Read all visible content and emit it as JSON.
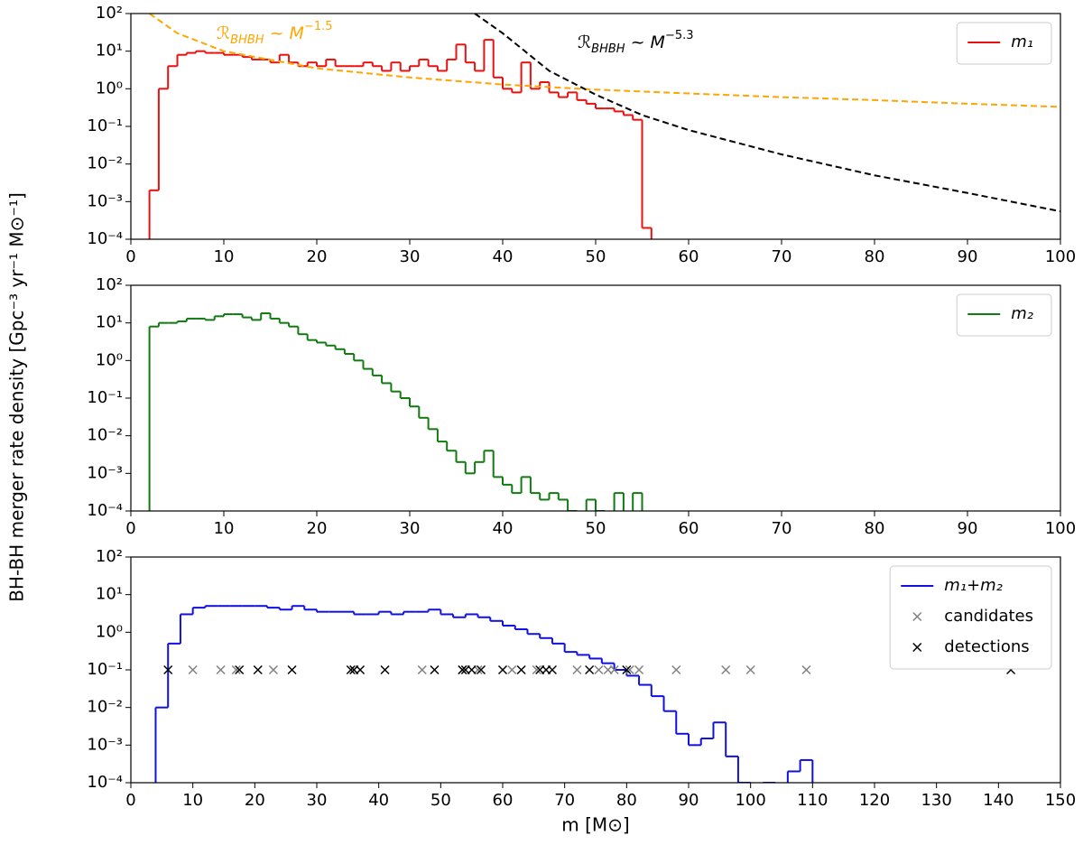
{
  "ylabel": "BH-BH merger rate density [Gpc⁻³ yr⁻¹ M⊙⁻¹]",
  "chart_data": [
    {
      "type": "histogram",
      "log_y": true,
      "legend": "upper right",
      "xlim": [
        0,
        100
      ],
      "ylim": [
        0.0001,
        100
      ],
      "xticks": [
        0,
        10,
        20,
        30,
        40,
        50,
        60,
        70,
        80,
        90,
        100
      ],
      "yticks": [
        {
          "value": 0.0001,
          "label": "10⁻⁴"
        },
        {
          "value": 0.001,
          "label": "10⁻³"
        },
        {
          "value": 0.01,
          "label": "10⁻²"
        },
        {
          "value": 0.1,
          "label": "10⁻¹"
        },
        {
          "value": 1,
          "label": "10⁰"
        },
        {
          "value": 10,
          "label": "10¹"
        },
        {
          "value": 100,
          "label": "10²"
        }
      ],
      "series": [
        {
          "type": "histogram",
          "name": "m₁",
          "color": "#e8110f",
          "bins": [
            2,
            3,
            4,
            5,
            6,
            7,
            8,
            9,
            10,
            11,
            12,
            13,
            14,
            15,
            16,
            17,
            18,
            19,
            20,
            21,
            22,
            23,
            24,
            25,
            26,
            27,
            28,
            29,
            30,
            31,
            32,
            33,
            34,
            35,
            36,
            37,
            38,
            39,
            40,
            41,
            42,
            43,
            44,
            45,
            46,
            47,
            48,
            49,
            50,
            51,
            52,
            53,
            54,
            55,
            56
          ],
          "values": [
            0.002,
            1,
            4,
            8,
            9,
            10,
            9,
            9,
            8,
            8,
            7,
            6,
            6,
            5,
            8,
            5,
            4,
            5,
            4,
            6,
            4,
            4,
            4,
            5,
            4,
            3,
            5,
            3,
            4,
            6,
            4,
            3,
            6,
            15,
            5,
            3,
            20,
            2,
            1,
            0.8,
            5,
            1,
            1.5,
            0.8,
            0.6,
            0.8,
            0.5,
            0.4,
            0.3,
            0.3,
            0.25,
            0.2,
            0.15,
            0.0002
          ]
        },
        {
          "type": "line",
          "color": "orange",
          "dashed": true,
          "x": [
            2,
            5,
            10,
            20,
            30,
            40,
            50,
            60,
            70,
            80,
            90,
            100
          ],
          "values": [
            100,
            30,
            10,
            3.5,
            2,
            1.3,
            0.95,
            0.75,
            0.6,
            0.5,
            0.4,
            0.33
          ],
          "annotation": {
            "main": "ℛ",
            "sub": "BHBH",
            "mid": " ~ M",
            "sup": "−1.5"
          }
        },
        {
          "type": "line",
          "color": "black",
          "dashed": true,
          "x": [
            37,
            40,
            45,
            50,
            55,
            60,
            70,
            80,
            90,
            100
          ],
          "values": [
            100,
            30,
            3,
            0.7,
            0.2,
            0.08,
            0.018,
            0.005,
            0.0017,
            0.00055
          ],
          "annotation": {
            "main": "ℛ",
            "sub": "BHBH",
            "mid": " ~ M",
            "sup": "−5.3"
          }
        }
      ]
    },
    {
      "type": "histogram",
      "log_y": true,
      "legend": "upper right",
      "xlim": [
        0,
        100
      ],
      "ylim": [
        0.0001,
        100
      ],
      "xticks": [
        0,
        10,
        20,
        30,
        40,
        50,
        60,
        70,
        80,
        90,
        100
      ],
      "yticks": [
        {
          "value": 0.0001,
          "label": "10⁻⁴"
        },
        {
          "value": 0.001,
          "label": "10⁻³"
        },
        {
          "value": 0.01,
          "label": "10⁻²"
        },
        {
          "value": 0.1,
          "label": "10⁻¹"
        },
        {
          "value": 1,
          "label": "10⁰"
        },
        {
          "value": 10,
          "label": "10¹"
        },
        {
          "value": 100,
          "label": "10²"
        }
      ],
      "series": [
        {
          "type": "histogram",
          "name": "m₂",
          "color": "#117a11",
          "bins": [
            2,
            3,
            4,
            5,
            6,
            7,
            8,
            9,
            10,
            11,
            12,
            13,
            14,
            15,
            16,
            17,
            18,
            19,
            20,
            21,
            22,
            23,
            24,
            25,
            26,
            27,
            28,
            29,
            30,
            31,
            32,
            33,
            34,
            35,
            36,
            37,
            38,
            39,
            40,
            41,
            42,
            43,
            44,
            45,
            46,
            47,
            48,
            49,
            50,
            51,
            52,
            53,
            54,
            55,
            56
          ],
          "values": [
            8,
            10,
            10,
            11,
            13,
            13,
            12,
            15,
            17,
            17,
            14,
            12,
            18,
            13,
            10,
            8,
            5,
            3.5,
            3,
            2.5,
            2,
            1.5,
            1,
            0.6,
            0.4,
            0.25,
            0.15,
            0.1,
            0.06,
            0.03,
            0.015,
            0.007,
            0.004,
            0.002,
            0.001,
            0.002,
            0.004,
            0.0008,
            0.0005,
            0.0003,
            0.0008,
            0.0003,
            0.0002,
            0.0003,
            0.0002,
            0.0001,
            0,
            0.0002,
            0.0001,
            0,
            0.0003,
            0,
            0.0003,
            0
          ]
        }
      ]
    },
    {
      "type": "histogram",
      "log_y": true,
      "legend": "upper right",
      "xlabel": "m [M⊙]",
      "xlim": [
        0,
        150
      ],
      "ylim": [
        0.0001,
        100
      ],
      "xticks": [
        0,
        10,
        20,
        30,
        40,
        50,
        60,
        70,
        80,
        90,
        100,
        110,
        120,
        130,
        140,
        150
      ],
      "yticks": [
        {
          "value": 0.0001,
          "label": "10⁻⁴"
        },
        {
          "value": 0.001,
          "label": "10⁻³"
        },
        {
          "value": 0.01,
          "label": "10⁻²"
        },
        {
          "value": 0.1,
          "label": "10⁻¹"
        },
        {
          "value": 1,
          "label": "10⁰"
        },
        {
          "value": 10,
          "label": "10¹"
        },
        {
          "value": 100,
          "label": "10²"
        }
      ],
      "series": [
        {
          "type": "histogram",
          "name": "m₁+m₂",
          "color": "#1010e0",
          "bins": [
            4,
            6,
            8,
            10,
            12,
            14,
            16,
            18,
            20,
            22,
            24,
            26,
            28,
            30,
            32,
            34,
            36,
            38,
            40,
            42,
            44,
            46,
            48,
            50,
            52,
            54,
            56,
            58,
            60,
            62,
            64,
            66,
            68,
            70,
            72,
            74,
            76,
            78,
            80,
            82,
            84,
            86,
            88,
            90,
            92,
            94,
            96,
            98,
            100,
            102,
            104,
            106,
            108,
            110,
            112
          ],
          "values": [
            0.01,
            0.5,
            3,
            4.5,
            5,
            5,
            5,
            5,
            5,
            4.5,
            4,
            5,
            4,
            3.5,
            3.5,
            3.5,
            3,
            3,
            3.5,
            3,
            3.5,
            3.5,
            4,
            3,
            2.5,
            3,
            2.5,
            2,
            1.5,
            1.2,
            0.9,
            0.7,
            0.5,
            0.3,
            0.25,
            0.2,
            0.15,
            0.1,
            0.07,
            0.04,
            0.02,
            0.008,
            0.002,
            0.001,
            0.0015,
            0.004,
            0.0005,
            0.0001,
            0,
            0.0001,
            0,
            0.0002,
            0.0004,
            0
          ]
        },
        {
          "type": "scatter",
          "name": "candidates",
          "color": "gray",
          "x": [
            10,
            14.5,
            17,
            23,
            36,
            47,
            53.5,
            56,
            61.5,
            65.5,
            72,
            75.5,
            77,
            78,
            80.5,
            82,
            88,
            96,
            100,
            109
          ],
          "values": [
            0.1,
            0.1,
            0.1,
            0.1,
            0.1,
            0.1,
            0.1,
            0.1,
            0.1,
            0.1,
            0.1,
            0.1,
            0.1,
            0.1,
            0.1,
            0.1,
            0.1,
            0.1,
            0.1,
            0.1
          ]
        },
        {
          "type": "scatter",
          "name": "detections",
          "color": "black",
          "x": [
            6,
            17.5,
            20.5,
            26,
            35.5,
            36,
            37,
            41,
            49,
            53.5,
            54,
            55,
            56.5,
            60,
            63,
            66,
            67,
            68,
            74,
            80,
            142
          ],
          "values": [
            0.1,
            0.1,
            0.1,
            0.1,
            0.1,
            0.1,
            0.1,
            0.1,
            0.1,
            0.1,
            0.1,
            0.1,
            0.1,
            0.1,
            0.1,
            0.1,
            0.1,
            0.1,
            0.1,
            0.1,
            0.1
          ]
        }
      ]
    }
  ]
}
